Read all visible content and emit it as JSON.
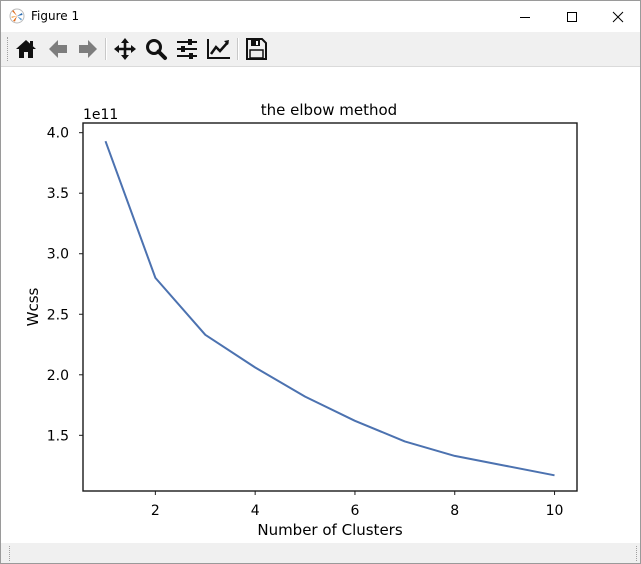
{
  "window": {
    "title": "Figure 1",
    "controls": {
      "minimize": "minimize",
      "maximize": "maximize",
      "close": "close"
    }
  },
  "toolbar": {
    "buttons": [
      {
        "name": "home-button",
        "icon": "home-icon",
        "tooltip": "Reset original view"
      },
      {
        "name": "back-button",
        "icon": "arrow-left-icon",
        "tooltip": "Back to previous view"
      },
      {
        "name": "forward-button",
        "icon": "arrow-right-icon",
        "tooltip": "Forward to next view"
      },
      {
        "name": "pan-button",
        "icon": "move-icon",
        "tooltip": "Pan axes"
      },
      {
        "name": "zoom-button",
        "icon": "magnifier-icon",
        "tooltip": "Zoom to rectangle"
      },
      {
        "name": "subplots-button",
        "icon": "sliders-icon",
        "tooltip": "Configure subplots"
      },
      {
        "name": "edit-axis-button",
        "icon": "line-chart-icon",
        "tooltip": "Edit axis, curve and image parameters"
      },
      {
        "name": "save-button",
        "icon": "floppy-disk-icon",
        "tooltip": "Save the figure"
      }
    ]
  },
  "chart_data": {
    "type": "line",
    "title": "the elbow method",
    "xlabel": "Number of Clusters",
    "ylabel": "Wcss",
    "offset_text": "1e11",
    "x": [
      1,
      2,
      3,
      4,
      5,
      6,
      7,
      8,
      9,
      10
    ],
    "series": [
      {
        "color": "#4c72b0",
        "values": [
          3.93,
          2.8,
          2.33,
          2.06,
          1.82,
          1.62,
          1.45,
          1.33,
          1.25,
          1.17
        ]
      }
    ],
    "xlim": [
      0.55,
      10.45
    ],
    "ylim": [
      1.04,
      4.08
    ],
    "xticks": [
      2,
      4,
      6,
      8,
      10
    ],
    "xtick_labels": [
      "2",
      "4",
      "6",
      "8",
      "10"
    ],
    "yticks": [
      1.5,
      2.0,
      2.5,
      3.0,
      3.5,
      4.0
    ],
    "ytick_labels": [
      "1.5",
      "2.0",
      "2.5",
      "3.0",
      "3.5",
      "4.0"
    ],
    "grid": false,
    "legend": "none"
  }
}
